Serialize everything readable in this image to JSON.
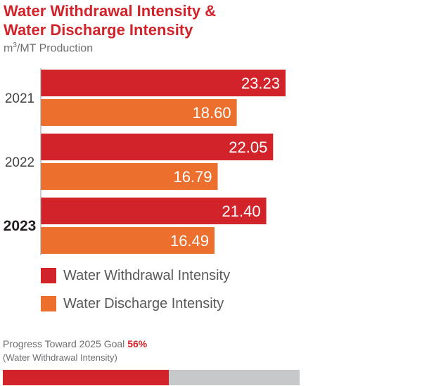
{
  "header": {
    "title_line1": "Water Withdrawal Intensity &",
    "title_line2": "Water Discharge Intensity",
    "unit_prefix": "m",
    "unit_sup": "3",
    "unit_suffix": "/MT Production"
  },
  "colors": {
    "withdrawal": "#d2232a",
    "discharge": "#ec6f2d",
    "track": "#c7c8ca"
  },
  "chart_data": {
    "type": "bar",
    "orientation": "horizontal",
    "title": "Water Withdrawal Intensity & Water Discharge Intensity",
    "xlabel": "m³/MT Production",
    "categories": [
      "2021",
      "2022",
      "2023"
    ],
    "series": [
      {
        "name": "Water Withdrawal Intensity",
        "values": [
          23.23,
          22.05,
          21.4
        ]
      },
      {
        "name": "Water Discharge Intensity",
        "values": [
          18.6,
          16.79,
          16.49
        ]
      }
    ],
    "value_labels": [
      [
        "23.23",
        "22.05",
        "21.40"
      ],
      [
        "18.60",
        "16.79",
        "16.49"
      ]
    ],
    "xlim": [
      0,
      23.23
    ],
    "grid": false,
    "legend_position": "bottom"
  },
  "legend": {
    "items": [
      {
        "label": "Water Withdrawal Intensity"
      },
      {
        "label": "Water Discharge Intensity"
      }
    ]
  },
  "progress": {
    "label": "Progress Toward 2025 Goal",
    "value_text": "56%",
    "value": 0.56,
    "note": "(Water Withdrawal Intensity)"
  }
}
